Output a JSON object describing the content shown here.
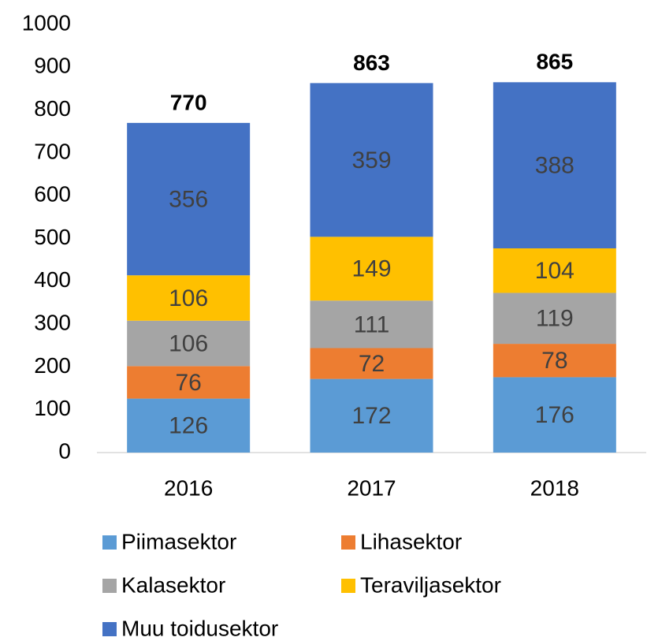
{
  "chart_data": {
    "type": "stacked_bar",
    "categories": [
      "2016",
      "2017",
      "2018"
    ],
    "series": [
      {
        "name": "Piimasektor",
        "color": "#5b9bd5",
        "values": [
          126,
          172,
          176
        ]
      },
      {
        "name": "Lihasektor",
        "color": "#ed7d31",
        "values": [
          76,
          72,
          78
        ]
      },
      {
        "name": "Kalasektor",
        "color": "#a5a5a5",
        "values": [
          106,
          111,
          119
        ]
      },
      {
        "name": "Teraviljasektor",
        "color": "#ffc000",
        "values": [
          106,
          149,
          104
        ]
      },
      {
        "name": "Muu toidusektor",
        "color": "#4472c4",
        "values": [
          356,
          359,
          388
        ]
      }
    ],
    "totals": [
      770,
      863,
      865
    ],
    "ylim": [
      0,
      1000
    ],
    "yticks": [
      0,
      100,
      200,
      300,
      400,
      500,
      600,
      700,
      800,
      900,
      1000
    ],
    "grid": false,
    "legend": "bottom"
  }
}
